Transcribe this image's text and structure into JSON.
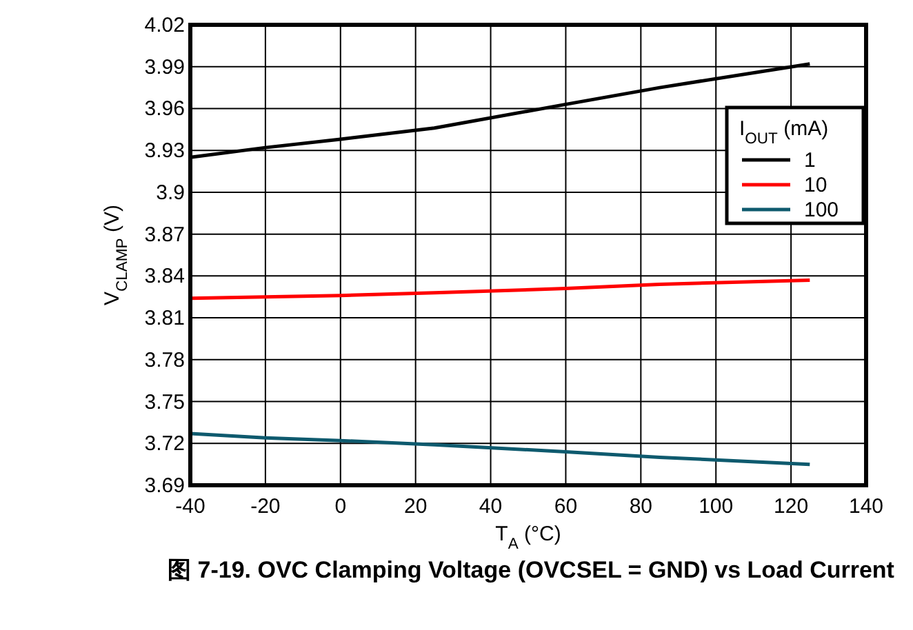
{
  "chart_data": {
    "type": "line",
    "title": "图 7-19. OVC Clamping Voltage (OVCSEL = GND) vs Load Current",
    "xlabel": "T$_{A}$ (°C)",
    "ylabel": "V$_{CLAMP}$ (V)",
    "legend_title": "I$_{OUT}$ (mA)",
    "legend": "right",
    "grid": true,
    "line_style": "solid",
    "marker": "none",
    "xlim": [
      -40,
      140
    ],
    "xticks": [
      -40,
      -20,
      0,
      20,
      40,
      60,
      80,
      100,
      120,
      140
    ],
    "ylim": [
      3.69,
      4.02
    ],
    "yticks": [
      3.69,
      3.72,
      3.75,
      3.78,
      3.81,
      3.84,
      3.87,
      3.9,
      3.93,
      3.96,
      3.99,
      4.02
    ],
    "x": [
      -40,
      -20,
      0,
      25,
      60,
      85,
      125
    ],
    "series": [
      {
        "name": "1",
        "color": "#000000",
        "values": [
          3.925,
          3.932,
          3.938,
          3.946,
          3.963,
          3.975,
          3.992
        ]
      },
      {
        "name": "10",
        "color": "#ff0000",
        "values": [
          3.824,
          3.825,
          3.826,
          3.828,
          3.831,
          3.834,
          3.837
        ]
      },
      {
        "name": "100",
        "color": "#0e5a6e",
        "values": [
          3.727,
          3.724,
          3.722,
          3.719,
          3.714,
          3.71,
          3.705
        ]
      }
    ]
  }
}
